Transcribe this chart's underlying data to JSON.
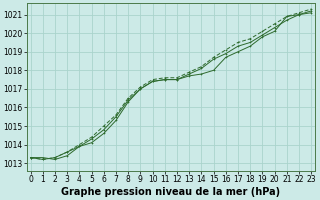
{
  "title": "Graphe pression niveau de la mer (hPa)",
  "background_color": "#cceae7",
  "grid_color": "#aad4cc",
  "line_color": "#2d6a2d",
  "hours": [
    0,
    1,
    2,
    3,
    4,
    5,
    6,
    7,
    8,
    9,
    10,
    11,
    12,
    13,
    14,
    15,
    16,
    17,
    18,
    19,
    20,
    21,
    22,
    23
  ],
  "series1": [
    1013.3,
    1013.3,
    1013.2,
    1013.4,
    1013.9,
    1014.1,
    1014.6,
    1015.3,
    1016.3,
    1017.0,
    1017.4,
    1017.5,
    1017.5,
    1017.7,
    1017.8,
    1018.0,
    1018.7,
    1019.0,
    1019.3,
    1019.8,
    1020.1,
    1020.9,
    1021.0,
    1021.1
  ],
  "series2": [
    1013.3,
    1013.2,
    1013.3,
    1013.6,
    1013.9,
    1014.3,
    1014.8,
    1015.5,
    1016.4,
    1017.0,
    1017.4,
    1017.5,
    1017.5,
    1017.8,
    1018.1,
    1018.6,
    1018.9,
    1019.3,
    1019.5,
    1019.9,
    1020.3,
    1020.7,
    1021.0,
    1021.2
  ],
  "series3": [
    1013.3,
    1013.2,
    1013.3,
    1013.6,
    1014.0,
    1014.4,
    1015.0,
    1015.6,
    1016.5,
    1017.1,
    1017.5,
    1017.6,
    1017.6,
    1017.9,
    1018.2,
    1018.7,
    1019.1,
    1019.5,
    1019.7,
    1020.1,
    1020.5,
    1020.9,
    1021.1,
    1021.3
  ],
  "ylim_min": 1012.6,
  "ylim_max": 1021.6,
  "yticks": [
    1013,
    1014,
    1015,
    1016,
    1017,
    1018,
    1019,
    1020,
    1021
  ],
  "xticks": [
    0,
    1,
    2,
    3,
    4,
    5,
    6,
    7,
    8,
    9,
    10,
    11,
    12,
    13,
    14,
    15,
    16,
    17,
    18,
    19,
    20,
    21,
    22,
    23
  ],
  "title_fontsize": 7,
  "tick_fontsize": 5.5
}
